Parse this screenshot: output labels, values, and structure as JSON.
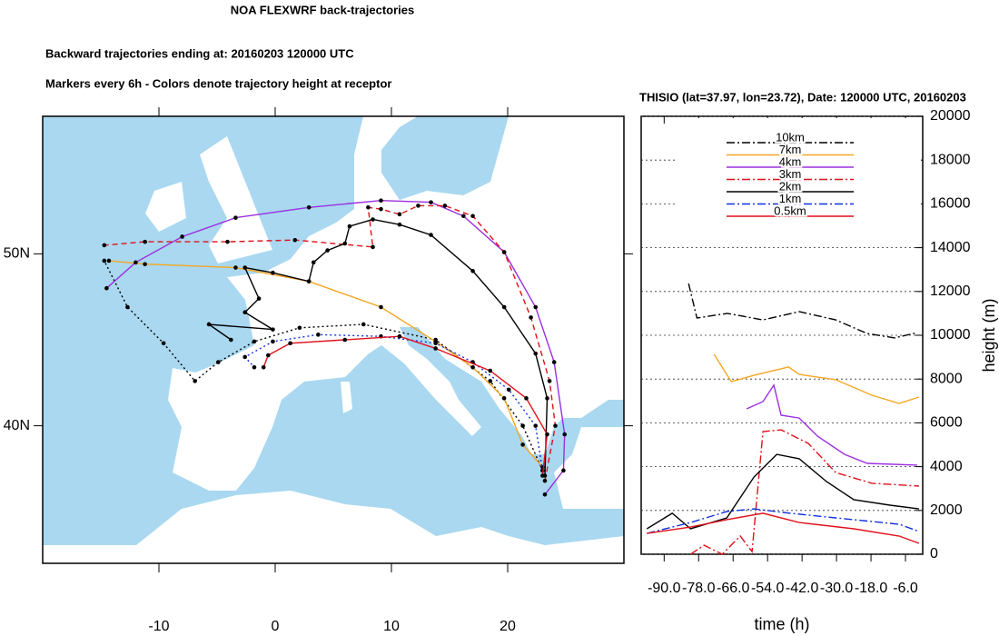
{
  "header": {
    "title": "NOA FLEXWRF back-trajectories",
    "lines": [
      "Backward trajectories ending at: 20160203  120000 UTC",
      "Markers every 6h - Colors denote trajectory height at receptor"
    ]
  },
  "chart_data": [
    {
      "type": "trajectory",
      "xlim": [
        -20,
        30
      ],
      "ylim": [
        32,
        58
      ],
      "xticks": [
        -10,
        0,
        10,
        20
      ],
      "yticks": [
        {
          "value": 40,
          "label": "40N"
        },
        {
          "value": 50,
          "label": "50N"
        }
      ],
      "series": [
        {
          "color": "#000000",
          "dash": "dot",
          "x": [
            23.0,
            21.3,
            18.5,
            13.8,
            7.6,
            2.1,
            -1.8,
            -4.9,
            -6.9,
            -9.6,
            -12.7,
            -14.7
          ],
          "y": [
            37.4,
            40.0,
            42.6,
            45.0,
            45.9,
            45.7,
            44.9,
            43.7,
            42.6,
            44.8,
            46.9,
            49.6
          ]
        },
        {
          "color": "#f5a623",
          "dash": "solid",
          "x": [
            23.0,
            21.3,
            19.7,
            17.0,
            13.8,
            9.1,
            2.9,
            -3.4,
            -11.2,
            -14.3
          ],
          "y": [
            37.6,
            38.9,
            41.6,
            43.4,
            44.9,
            46.9,
            48.4,
            49.2,
            49.4,
            49.6
          ]
        },
        {
          "color": "#9b30e0",
          "dash": "solid",
          "x": [
            23.2,
            24.8,
            24.9,
            24.0,
            22.4,
            19.7,
            16.2,
            13.4,
            9.1,
            2.9,
            -3.4,
            -8.0,
            -12.0,
            -14.5
          ],
          "y": [
            36.0,
            37.4,
            39.5,
            43.7,
            46.9,
            50.1,
            52.2,
            53.0,
            53.1,
            52.7,
            52.1,
            51.0,
            49.5,
            48.0
          ]
        },
        {
          "color": "#e0101a",
          "dash": "dash",
          "x": [
            23.2,
            24.1,
            23.6,
            22.0,
            19.7,
            17.0,
            14.6,
            12.3,
            10.7,
            9.1,
            8.0,
            8.4,
            1.7,
            -4.1,
            -11.2,
            -14.7
          ],
          "y": [
            36.8,
            40.0,
            42.6,
            46.3,
            50.1,
            52.2,
            52.8,
            52.8,
            52.3,
            52.6,
            52.7,
            50.4,
            50.8,
            50.7,
            50.7,
            50.5
          ]
        },
        {
          "color": "#000000",
          "dash": "solid",
          "x": [
            23.2,
            23.4,
            22.4,
            19.7,
            17.0,
            13.4,
            10.7,
            8.4,
            6.4,
            6.0,
            4.5,
            3.3,
            2.9,
            -0.2,
            -2.6,
            -1.4,
            -2.6,
            -0.2,
            -5.7,
            -3.8
          ],
          "y": [
            37.1,
            41.6,
            44.2,
            46.9,
            49.0,
            51.1,
            51.7,
            52.0,
            51.6,
            50.6,
            50.2,
            49.5,
            48.4,
            48.9,
            49.2,
            47.4,
            46.6,
            45.6,
            45.9,
            45.0
          ]
        },
        {
          "color": "#1030e0",
          "dash": "dot",
          "x": [
            23.0,
            22.4,
            20.1,
            17.0,
            13.8,
            9.1,
            3.7,
            -0.2,
            -2.6,
            -1.8
          ],
          "y": [
            37.4,
            40.0,
            42.1,
            43.7,
            44.8,
            45.2,
            45.3,
            44.9,
            44.0,
            43.4
          ]
        },
        {
          "color": "#e0101a",
          "dash": "solid",
          "x": [
            23.0,
            23.4,
            21.6,
            18.5,
            13.8,
            10.7,
            6.0,
            1.3,
            -0.6,
            -1.0
          ],
          "y": [
            37.1,
            39.5,
            41.6,
            43.2,
            44.5,
            45.2,
            45.0,
            44.8,
            44.1,
            43.4
          ]
        }
      ]
    },
    {
      "type": "line",
      "title": "THISIO (lat=37.97,  lon=23.72), Date: 120000 UTC, 20160203",
      "x_label": "time (h)",
      "y_label": "height (m)",
      "xlim": [
        -98,
        0
      ],
      "ylim": [
        0,
        20000
      ],
      "xticks": [
        {
          "value": -90,
          "label": "-90.0"
        },
        {
          "value": -78,
          "label": "-78.0"
        },
        {
          "value": -66,
          "label": "-66.0"
        },
        {
          "value": -54,
          "label": "-54.0"
        },
        {
          "value": -42,
          "label": "-42.0"
        },
        {
          "value": -30,
          "label": "-30.0"
        },
        {
          "value": -18,
          "label": "-18.0"
        },
        {
          "value": -6,
          "label": "-6.0"
        }
      ],
      "yticks": [
        0,
        2000,
        4000,
        6000,
        8000,
        10000,
        12000,
        14000,
        16000,
        18000,
        20000
      ],
      "grid": true,
      "legend": "top",
      "series": [
        {
          "name": "10km",
          "color": "#000000",
          "dash": "dashdot",
          "x": [
            -81.5,
            -78.6,
            -68,
            -55.6,
            -43,
            -30.3,
            -19.3,
            -9.8,
            -1.9
          ],
          "values": [
            12360,
            10790,
            11000,
            10700,
            11080,
            10700,
            10080,
            9880,
            10120
          ]
        },
        {
          "name": "7km",
          "color": "#f5a623",
          "dash": "solid",
          "x": [
            -72.6,
            -66.6,
            -58.7,
            -46.7,
            -43,
            -30.3,
            -17.7,
            -8.2,
            -1.3
          ],
          "values": [
            9130,
            7880,
            8170,
            8550,
            8210,
            7970,
            7260,
            6890,
            7180
          ]
        },
        {
          "name": "4km",
          "color": "#9b30e0",
          "dash": "solid",
          "x": [
            -61.3,
            -55.6,
            -51.8,
            -49.3,
            -43,
            -36.6,
            -27.2,
            -19.3,
            -1.9
          ],
          "values": [
            6640,
            6970,
            7720,
            6350,
            6220,
            5390,
            4560,
            4150,
            4070
          ]
        },
        {
          "name": "3km",
          "color": "#e0101a",
          "dash": "dashdot",
          "x": [
            -80.8,
            -76.1,
            -69.8,
            -63.5,
            -59.4,
            -55.6,
            -49.3,
            -39.8,
            -30.3,
            -17.7,
            -1.3
          ],
          "values": [
            0,
            410,
            0,
            830,
            120,
            5600,
            5680,
            5060,
            3730,
            3240,
            3110
          ]
        },
        {
          "name": "2km",
          "color": "#000000",
          "dash": "solid",
          "x": [
            -96,
            -87.2,
            -80.8,
            -68.2,
            -58.7,
            -50.8,
            -43,
            -33.5,
            -24,
            -11.4,
            -1.3
          ],
          "values": [
            1160,
            1870,
            1160,
            1660,
            3530,
            4560,
            4360,
            3320,
            2490,
            2240,
            2070
          ]
        },
        {
          "name": "1km",
          "color": "#1030e0",
          "dash": "dashdot",
          "x": [
            -96,
            -80.8,
            -68.2,
            -58.7,
            -46.1,
            -30.3,
            -8.2,
            -1.3
          ],
          "values": [
            950,
            1450,
            1950,
            2070,
            1870,
            1660,
            1370,
            1040
          ]
        },
        {
          "name": "0.5km",
          "color": "#e0101a",
          "dash": "solid",
          "x": [
            -96,
            -80.8,
            -68.2,
            -55.6,
            -43,
            -24,
            -8.2,
            -1.3
          ],
          "values": [
            950,
            1240,
            1580,
            1870,
            1450,
            1160,
            830,
            500
          ]
        }
      ]
    }
  ]
}
